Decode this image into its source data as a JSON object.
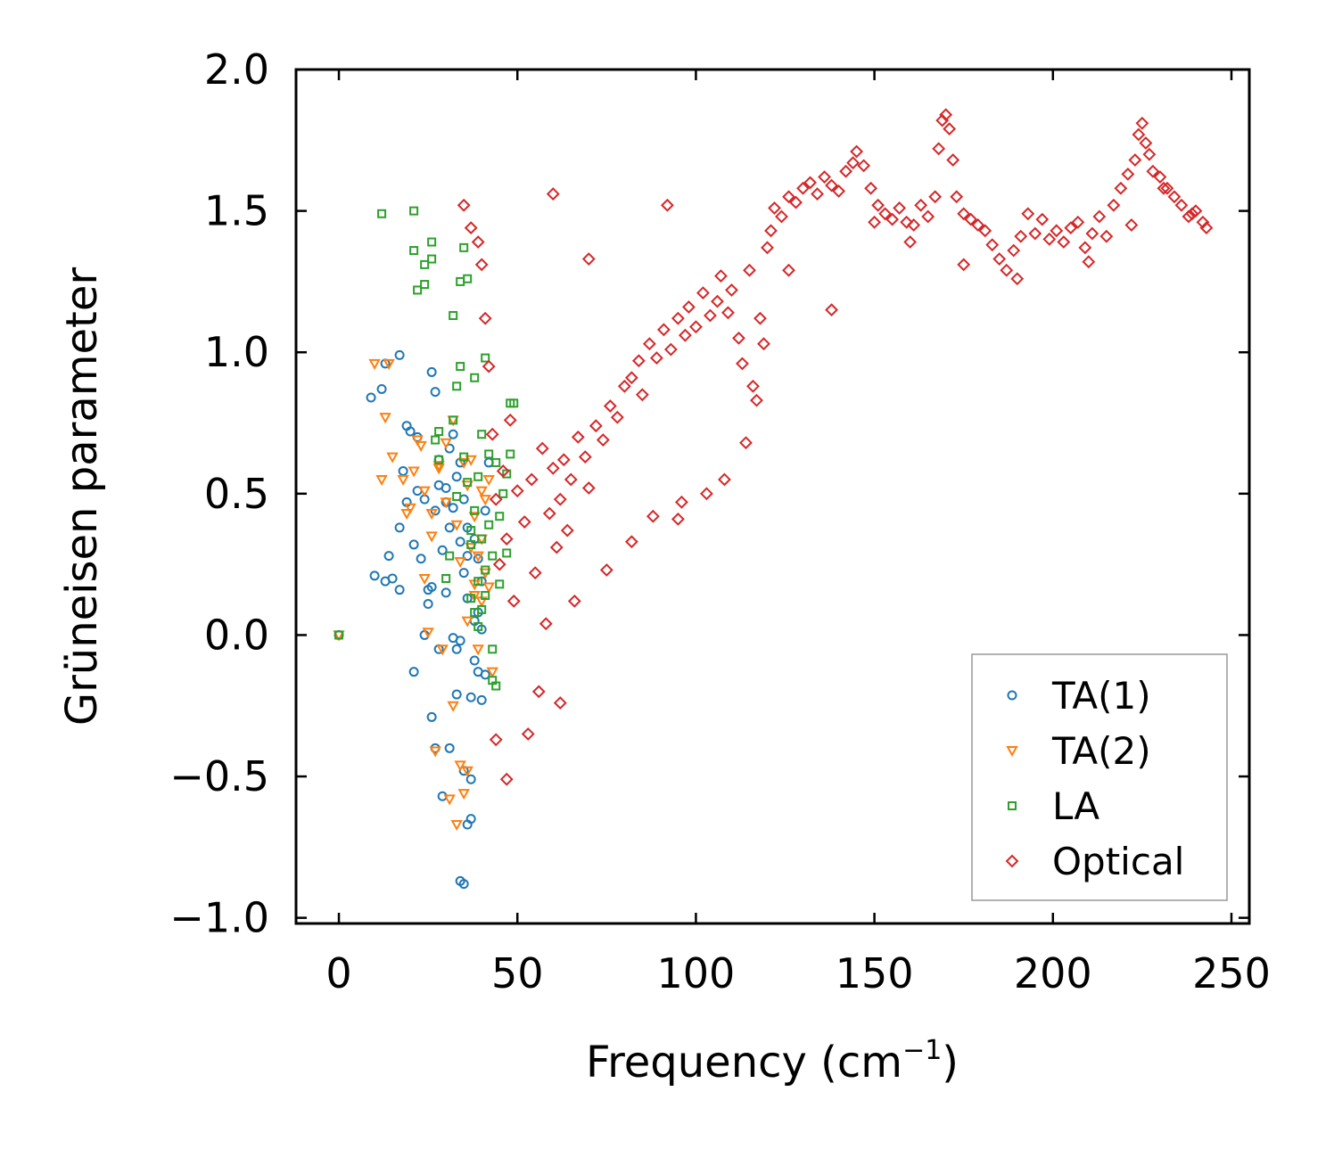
{
  "chart_data": {
    "type": "scatter",
    "title": "",
    "xlabel": "Frequency (cm",
    "xlabel_sup": "−1",
    "xlabel_close": ")",
    "ylabel": "Grüneisen parameter",
    "xlim": [
      -12,
      255
    ],
    "ylim": [
      -1.02,
      2.0
    ],
    "xticks": [
      0,
      50,
      100,
      150,
      200,
      250
    ],
    "xtick_labels": [
      "0",
      "50",
      "100",
      "150",
      "200",
      "250"
    ],
    "yticks": [
      -1.0,
      -0.5,
      0.0,
      0.5,
      1.0,
      1.5,
      2.0
    ],
    "ytick_labels": [
      "−1.0",
      "−0.5",
      "0.0",
      "0.5",
      "1.0",
      "1.5",
      "2.0"
    ],
    "grid": false,
    "legend_position": "lower-right",
    "series": [
      {
        "name": "TA(1)",
        "marker": "circle",
        "color": "#1f77b4",
        "x": [
          0,
          9,
          10,
          12,
          13,
          13,
          14,
          17,
          17,
          18,
          19,
          19,
          20,
          21,
          22,
          22,
          23,
          24,
          25,
          26,
          26,
          27,
          27,
          28,
          28,
          29,
          30,
          30,
          31,
          31,
          32,
          32,
          33,
          33,
          34,
          34,
          34,
          35,
          35,
          35,
          36,
          36,
          36,
          37,
          37,
          37,
          38,
          38,
          38,
          39,
          39,
          39,
          40,
          40,
          40,
          41,
          41,
          42,
          26,
          27,
          29,
          31,
          33,
          35,
          36,
          24,
          28,
          30,
          32,
          34,
          25,
          21,
          17,
          15
        ],
        "y": [
          0.0,
          0.84,
          0.21,
          0.87,
          0.96,
          0.19,
          0.28,
          0.99,
          0.16,
          0.58,
          0.74,
          0.47,
          0.72,
          0.32,
          0.7,
          0.51,
          0.27,
          0.48,
          0.11,
          0.17,
          0.93,
          0.44,
          0.86,
          0.62,
          0.53,
          0.3,
          0.15,
          0.47,
          0.38,
          0.66,
          -0.01,
          0.45,
          -0.21,
          0.56,
          -0.87,
          0.61,
          -0.02,
          -0.88,
          0.22,
          0.48,
          -0.67,
          0.38,
          0.13,
          -0.65,
          -0.51,
          -0.22,
          0.05,
          -0.09,
          0.34,
          -0.13,
          0.27,
          0.08,
          -0.23,
          0.19,
          0.02,
          -0.14,
          0.44,
          0.61,
          -0.29,
          -0.4,
          -0.57,
          -0.4,
          -0.05,
          -0.48,
          0.28,
          0.0,
          -0.05,
          0.52,
          0.71,
          0.33,
          0.16,
          -0.13,
          0.38,
          0.2
        ]
      },
      {
        "name": "TA(2)",
        "marker": "triangle",
        "color": "#ff7f0e",
        "x": [
          0,
          10,
          12,
          13,
          14,
          15,
          18,
          19,
          20,
          21,
          22,
          23,
          24,
          25,
          26,
          27,
          28,
          29,
          30,
          31,
          32,
          33,
          33,
          34,
          35,
          35,
          36,
          36,
          37,
          37,
          38,
          38,
          39,
          39,
          40,
          40,
          41,
          41,
          42,
          42,
          43,
          32,
          34,
          30,
          28,
          26,
          24,
          36,
          38,
          40
        ],
        "y": [
          0.0,
          0.96,
          0.55,
          0.77,
          0.96,
          0.63,
          0.55,
          0.43,
          0.45,
          0.58,
          0.69,
          0.67,
          0.51,
          0.01,
          0.43,
          -0.41,
          0.6,
          -0.05,
          0.47,
          -0.58,
          -0.25,
          -0.67,
          0.39,
          -0.46,
          0.61,
          -0.56,
          0.53,
          -0.48,
          0.31,
          0.62,
          0.14,
          0.42,
          -0.05,
          0.28,
          0.34,
          0.12,
          0.22,
          0.48,
          0.17,
          0.55,
          -0.13,
          0.76,
          0.26,
          0.68,
          0.59,
          0.35,
          0.2,
          0.05,
          0.18,
          0.51
        ]
      },
      {
        "name": "LA",
        "marker": "square",
        "color": "#2ca02c",
        "x": [
          0,
          12,
          21,
          21,
          22,
          24,
          24,
          26,
          26,
          27,
          28,
          28,
          30,
          31,
          32,
          32,
          33,
          34,
          34,
          35,
          35,
          36,
          36,
          37,
          37,
          38,
          38,
          38,
          39,
          39,
          40,
          40,
          40,
          41,
          41,
          42,
          42,
          43,
          43,
          44,
          44,
          45,
          46,
          47,
          47,
          48,
          48,
          49,
          41,
          43,
          39,
          37,
          45,
          33
        ],
        "y": [
          0.0,
          1.49,
          1.5,
          1.36,
          1.22,
          1.24,
          1.31,
          1.33,
          1.39,
          0.69,
          0.62,
          0.72,
          0.2,
          0.28,
          1.13,
          0.76,
          0.88,
          1.25,
          0.95,
          1.37,
          0.63,
          0.54,
          1.26,
          0.13,
          0.37,
          0.08,
          0.91,
          0.44,
          0.56,
          0.19,
          0.34,
          0.71,
          0.09,
          0.98,
          0.23,
          0.64,
          0.39,
          -0.16,
          0.28,
          -0.18,
          0.61,
          0.42,
          0.5,
          0.29,
          0.57,
          0.82,
          0.64,
          0.82,
          0.14,
          -0.05,
          0.03,
          0.32,
          0.18,
          0.49
        ]
      },
      {
        "name": "Optical",
        "marker": "diamond",
        "color": "#d62728",
        "x": [
          35,
          37,
          39,
          40,
          41,
          42,
          43,
          44,
          45,
          46,
          47,
          48,
          49,
          50,
          52,
          54,
          55,
          57,
          59,
          60,
          61,
          62,
          63,
          64,
          65,
          67,
          69,
          70,
          72,
          74,
          76,
          78,
          80,
          82,
          84,
          85,
          87,
          89,
          91,
          93,
          95,
          97,
          98,
          100,
          102,
          104,
          106,
          107,
          109,
          110,
          112,
          113,
          115,
          116,
          118,
          119,
          120,
          121,
          122,
          124,
          126,
          128,
          130,
          132,
          134,
          136,
          138,
          140,
          142,
          144,
          145,
          147,
          149,
          151,
          153,
          155,
          157,
          159,
          161,
          163,
          165,
          167,
          168,
          169,
          170,
          171,
          172,
          173,
          175,
          177,
          179,
          181,
          183,
          185,
          187,
          189,
          191,
          193,
          195,
          197,
          199,
          201,
          203,
          205,
          207,
          209,
          211,
          213,
          215,
          217,
          219,
          221,
          223,
          224,
          225,
          226,
          227,
          228,
          230,
          232,
          234,
          236,
          238,
          240,
          242,
          243,
          60,
          70,
          92,
          95,
          138,
          44,
          47,
          53,
          56,
          58,
          62,
          66,
          75,
          82,
          88,
          96,
          103,
          108,
          114,
          117,
          126,
          150,
          160,
          175,
          190,
          210,
          222,
          231,
          239
        ],
        "y": [
          1.52,
          1.44,
          1.39,
          1.31,
          1.12,
          0.95,
          0.71,
          0.48,
          0.25,
          0.58,
          0.34,
          0.76,
          0.12,
          0.51,
          0.4,
          0.55,
          0.22,
          0.66,
          0.43,
          0.59,
          0.31,
          0.48,
          0.62,
          0.37,
          0.55,
          0.7,
          0.63,
          0.52,
          0.74,
          0.69,
          0.81,
          0.77,
          0.88,
          0.91,
          0.97,
          0.85,
          1.03,
          0.98,
          1.08,
          1.01,
          1.12,
          1.06,
          1.16,
          1.09,
          1.21,
          1.13,
          1.18,
          1.27,
          1.14,
          1.22,
          1.05,
          0.96,
          1.29,
          0.88,
          1.12,
          1.03,
          1.37,
          1.43,
          1.51,
          1.48,
          1.55,
          1.53,
          1.58,
          1.6,
          1.56,
          1.62,
          1.59,
          1.57,
          1.64,
          1.67,
          1.71,
          1.66,
          1.58,
          1.52,
          1.49,
          1.47,
          1.51,
          1.46,
          1.45,
          1.52,
          1.48,
          1.55,
          1.72,
          1.82,
          1.84,
          1.79,
          1.68,
          1.55,
          1.49,
          1.47,
          1.45,
          1.43,
          1.38,
          1.33,
          1.29,
          1.36,
          1.41,
          1.49,
          1.42,
          1.47,
          1.4,
          1.43,
          1.39,
          1.44,
          1.46,
          1.37,
          1.42,
          1.48,
          1.41,
          1.52,
          1.58,
          1.63,
          1.68,
          1.77,
          1.81,
          1.74,
          1.7,
          1.64,
          1.62,
          1.58,
          1.55,
          1.52,
          1.48,
          1.5,
          1.46,
          1.44,
          1.56,
          1.33,
          1.52,
          0.41,
          1.15,
          -0.37,
          -0.51,
          -0.35,
          -0.2,
          0.04,
          -0.24,
          0.12,
          0.23,
          0.33,
          0.42,
          0.47,
          0.5,
          0.55,
          0.68,
          0.83,
          1.29,
          1.46,
          1.39,
          1.31,
          1.26,
          1.32,
          1.45,
          1.58,
          1.49
        ]
      }
    ]
  },
  "legend": {
    "items": [
      {
        "label": "TA(1)",
        "marker": "circle",
        "color": "#1f77b4"
      },
      {
        "label": "TA(2)",
        "marker": "triangle",
        "color": "#ff7f0e"
      },
      {
        "label": "LA",
        "marker": "square",
        "color": "#2ca02c"
      },
      {
        "label": "Optical",
        "marker": "diamond",
        "color": "#d62728"
      }
    ]
  }
}
